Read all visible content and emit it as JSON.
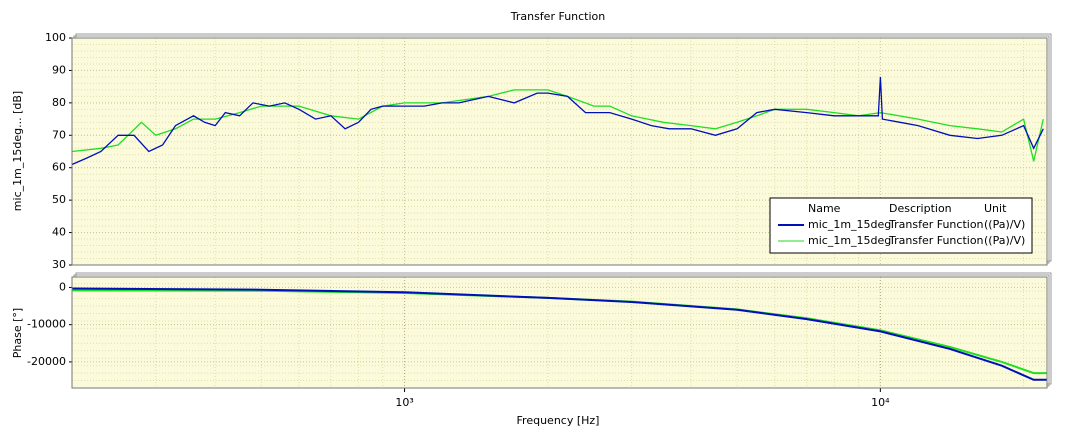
{
  "chart_data": [
    {
      "type": "line",
      "title": "Transfer Function",
      "ylabel": "mic_1m_15deg... [dB]",
      "xscale": "log",
      "xlim": [
        200,
        22400
      ],
      "ylim": [
        30,
        100
      ],
      "yticks": [
        30,
        40,
        50,
        60,
        70,
        80,
        90,
        100
      ],
      "grid": true,
      "legend": {
        "location": "lower right",
        "columns": [
          "Name",
          "Description",
          "Unit"
        ]
      },
      "series": [
        {
          "name": "mic_1m_15deg",
          "description": "Transfer Function",
          "unit": "((Pa)/V)",
          "color": "#0010b8",
          "x": [
            200,
            215,
            230,
            250,
            270,
            290,
            310,
            330,
            360,
            380,
            400,
            420,
            450,
            480,
            520,
            560,
            600,
            650,
            700,
            750,
            800,
            850,
            900,
            1000,
            1100,
            1200,
            1300,
            1500,
            1700,
            1900,
            2000,
            2200,
            2400,
            2700,
            3000,
            3300,
            3600,
            4000,
            4500,
            5000,
            5500,
            6000,
            7000,
            8000,
            9000,
            9900,
            10000,
            10100,
            11000,
            12000,
            14000,
            16000,
            18000,
            20000,
            21000,
            22000
          ],
          "values": [
            61,
            63,
            65,
            70,
            70,
            65,
            67,
            73,
            76,
            74,
            73,
            77,
            76,
            80,
            79,
            80,
            78,
            75,
            76,
            72,
            74,
            78,
            79,
            79,
            79,
            80,
            80,
            82,
            80,
            83,
            83,
            82,
            77,
            77,
            75,
            73,
            72,
            72,
            70,
            72,
            77,
            78,
            77,
            76,
            76,
            76,
            88,
            75,
            74,
            73,
            70,
            69,
            70,
            73,
            66,
            72
          ]
        },
        {
          "name": "mic_1m_15deg",
          "description": "Transfer Function",
          "unit": "((Pa)/V)",
          "color": "#22dd22",
          "x": [
            200,
            230,
            250,
            280,
            300,
            330,
            360,
            400,
            450,
            500,
            560,
            600,
            700,
            800,
            900,
            1000,
            1200,
            1500,
            1700,
            2000,
            2200,
            2500,
            2700,
            3000,
            3500,
            4000,
            4500,
            5000,
            5500,
            6000,
            7000,
            8000,
            9000,
            10000,
            12000,
            14000,
            16000,
            18000,
            20000,
            21000,
            22000
          ],
          "values": [
            65,
            66,
            67,
            74,
            70,
            72,
            75,
            75,
            77,
            79,
            79,
            79,
            76,
            75,
            79,
            80,
            80,
            82,
            84,
            84,
            82,
            79,
            79,
            76,
            74,
            73,
            72,
            74,
            76,
            78,
            78,
            77,
            76,
            77,
            75,
            73,
            72,
            71,
            75,
            62,
            75
          ]
        }
      ]
    },
    {
      "type": "line",
      "ylabel": "Phase [°]",
      "xlabel": "Frequency [Hz]",
      "xscale": "log",
      "xlim": [
        200,
        22400
      ],
      "xticks": [
        {
          "value": 1000,
          "label": "10³"
        },
        {
          "value": 10000,
          "label": "10⁴"
        }
      ],
      "ylim": [
        -27000,
        2800
      ],
      "yticks": [
        0,
        -10000,
        -20000
      ],
      "grid": true,
      "series": [
        {
          "name": "mic_1m_15deg",
          "color": "#0010b8",
          "x": [
            200,
            500,
            1000,
            2000,
            3000,
            5000,
            7000,
            10000,
            14000,
            18000,
            21000,
            22400
          ],
          "values": [
            -300,
            -600,
            -1300,
            -2800,
            -3900,
            -6000,
            -8500,
            -11800,
            -16500,
            -21000,
            -24800,
            -24800
          ]
        },
        {
          "name": "mic_1m_15deg",
          "color": "#22dd22",
          "x": [
            200,
            500,
            1000,
            2000,
            3000,
            5000,
            7000,
            10000,
            14000,
            18000,
            21000,
            22400
          ],
          "values": [
            -800,
            -900,
            -1500,
            -2800,
            -3800,
            -5900,
            -8300,
            -11500,
            -16000,
            -20000,
            -23000,
            -23000
          ]
        }
      ]
    }
  ]
}
